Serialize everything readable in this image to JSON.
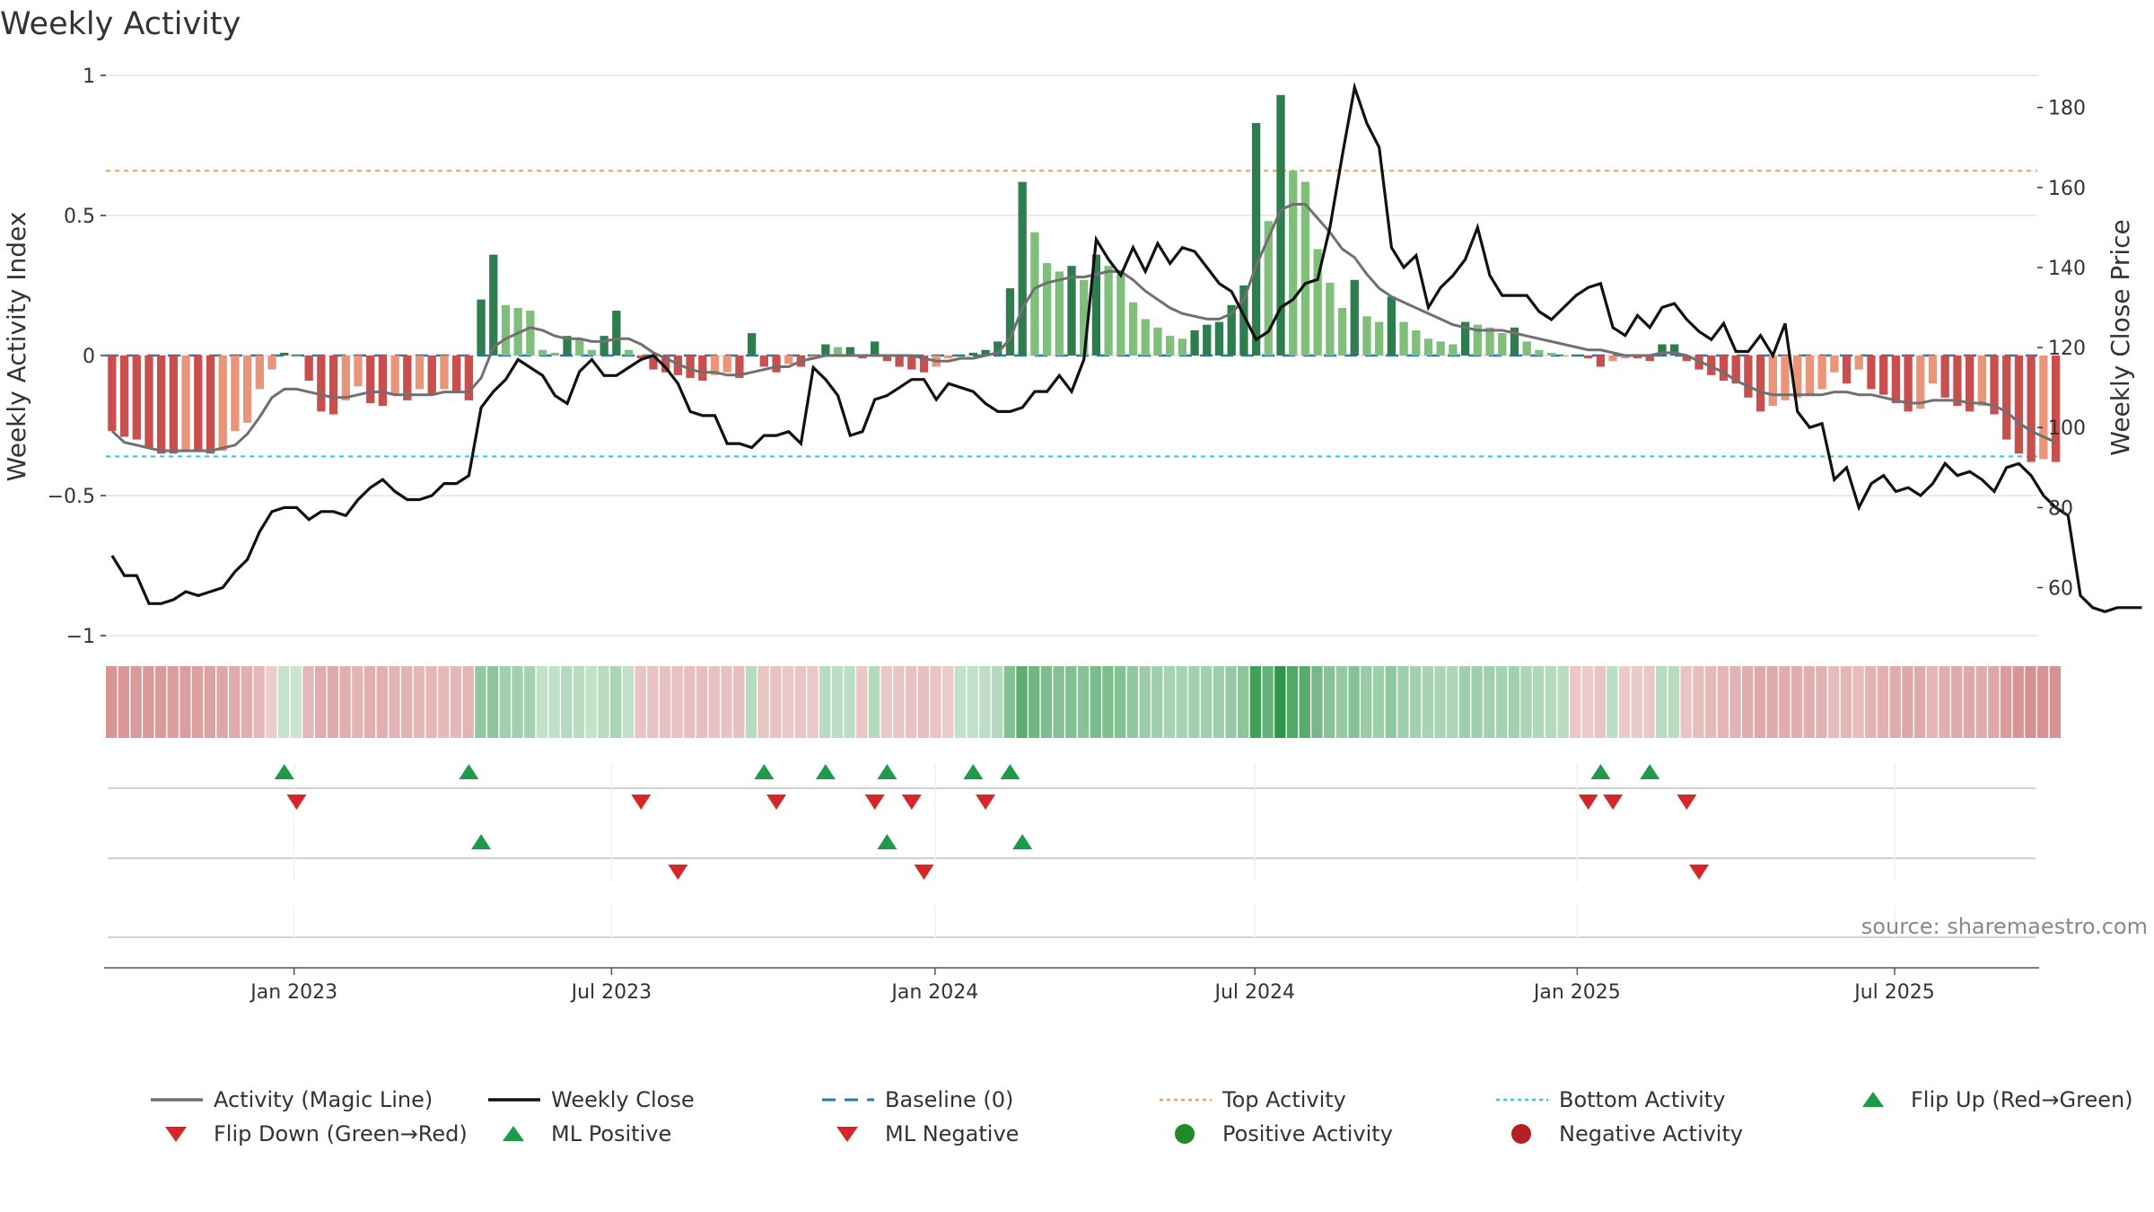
{
  "chart_data": {
    "type": "bar",
    "title": "Weekly Activity",
    "ylabel": "Weekly Activity Index",
    "ylabel_right": "Weekly Close Price",
    "ylim": [
      -1,
      1
    ],
    "ylim_right": [
      48,
      188
    ],
    "yticks": [
      {
        "value": 1,
        "label": "1"
      },
      {
        "value": 0.5,
        "label": "0.5"
      },
      {
        "value": 0,
        "label": "0"
      },
      {
        "value": -0.5,
        "label": "−0.5"
      },
      {
        "value": -1,
        "label": "−1"
      }
    ],
    "yticks_right": [
      {
        "value": 180,
        "label": "180"
      },
      {
        "value": 160,
        "label": "160"
      },
      {
        "value": 140,
        "label": "140"
      },
      {
        "value": 120,
        "label": "120"
      },
      {
        "value": 100,
        "label": "100"
      },
      {
        "value": 80,
        "label": "80"
      },
      {
        "value": 60,
        "label": "60"
      }
    ],
    "x_start_week": 0,
    "x_end_week": 157,
    "xticks": [
      {
        "week": 15.3,
        "label": "Jan 2023"
      },
      {
        "week": 41.1,
        "label": "Jul 2023"
      },
      {
        "week": 67.4,
        "label": "Jan 2024"
      },
      {
        "week": 93.4,
        "label": "Jul 2024"
      },
      {
        "week": 119.6,
        "label": "Jan 2025"
      },
      {
        "week": 145.4,
        "label": "Jul 2025"
      }
    ],
    "top_activity": 0.66,
    "bottom_activity": -0.36,
    "activity": [
      -0.27,
      -0.29,
      -0.3,
      -0.33,
      -0.35,
      -0.35,
      -0.34,
      -0.34,
      -0.35,
      -0.34,
      -0.27,
      -0.24,
      -0.12,
      -0.05,
      0.01,
      0,
      -0.09,
      -0.2,
      -0.21,
      -0.16,
      -0.11,
      -0.17,
      -0.18,
      -0.14,
      -0.16,
      -0.12,
      -0.14,
      -0.12,
      -0.13,
      -0.16,
      0.2,
      0.36,
      0.18,
      0.17,
      0.16,
      0.02,
      0.01,
      0.07,
      0.06,
      0.02,
      0.07,
      0.16,
      0.02,
      -0.01,
      -0.05,
      -0.06,
      -0.07,
      -0.08,
      -0.09,
      -0.07,
      -0.06,
      -0.08,
      0.08,
      -0.04,
      -0.06,
      -0.03,
      -0.04,
      -0.01,
      0.04,
      0.03,
      0.03,
      -0.01,
      0.05,
      -0.02,
      -0.04,
      -0.05,
      -0.06,
      -0.04,
      -0.01,
      0,
      0.01,
      0.02,
      0.05,
      0.24,
      0.62,
      0.44,
      0.33,
      0.3,
      0.32,
      0.27,
      0.36,
      0.32,
      0.29,
      0.19,
      0.13,
      0.1,
      0.07,
      0.06,
      0.09,
      0.11,
      0.12,
      0.18,
      0.25,
      0.83,
      0.48,
      0.93,
      0.66,
      0.62,
      0.38,
      0.26,
      0.17,
      0.27,
      0.14,
      0.12,
      0.21,
      0.12,
      0.09,
      0.06,
      0.05,
      0.04,
      0.12,
      0.11,
      0.1,
      0.08,
      0.1,
      0.05,
      0.02,
      0.01,
      0,
      0,
      -0.01,
      -0.04,
      -0.02,
      -0.01,
      -0.01,
      -0.02,
      0.04,
      0.04,
      -0.02,
      -0.05,
      -0.07,
      -0.09,
      -0.1,
      -0.15,
      -0.2,
      -0.18,
      -0.16,
      -0.15,
      -0.14,
      -0.12,
      -0.06,
      -0.1,
      -0.05,
      -0.12,
      -0.14,
      -0.17,
      -0.2,
      -0.19,
      -0.1,
      -0.15,
      -0.18,
      -0.2,
      -0.18,
      -0.21,
      -0.3,
      -0.35,
      -0.38,
      -0.37,
      -0.38
    ],
    "magic_line": [
      -0.27,
      -0.31,
      -0.32,
      -0.33,
      -0.34,
      -0.34,
      -0.34,
      -0.34,
      -0.34,
      -0.33,
      -0.32,
      -0.28,
      -0.22,
      -0.15,
      -0.12,
      -0.12,
      -0.13,
      -0.14,
      -0.15,
      -0.15,
      -0.14,
      -0.13,
      -0.13,
      -0.14,
      -0.14,
      -0.14,
      -0.14,
      -0.13,
      -0.13,
      -0.13,
      -0.08,
      0.03,
      0.06,
      0.08,
      0.1,
      0.09,
      0.07,
      0.06,
      0.06,
      0.05,
      0.05,
      0.06,
      0.06,
      0.04,
      0.01,
      -0.01,
      -0.03,
      -0.05,
      -0.06,
      -0.06,
      -0.07,
      -0.07,
      -0.06,
      -0.05,
      -0.04,
      -0.04,
      -0.02,
      -0.01,
      0,
      0,
      0,
      0,
      0,
      0,
      0,
      0,
      -0.01,
      -0.02,
      -0.02,
      -0.01,
      -0.01,
      0,
      0.01,
      0.06,
      0.17,
      0.24,
      0.26,
      0.27,
      0.28,
      0.28,
      0.29,
      0.3,
      0.3,
      0.27,
      0.23,
      0.2,
      0.17,
      0.15,
      0.14,
      0.13,
      0.13,
      0.15,
      0.2,
      0.32,
      0.42,
      0.52,
      0.54,
      0.54,
      0.49,
      0.44,
      0.38,
      0.35,
      0.29,
      0.24,
      0.21,
      0.19,
      0.17,
      0.15,
      0.13,
      0.11,
      0.1,
      0.09,
      0.09,
      0.09,
      0.08,
      0.07,
      0.06,
      0.05,
      0.04,
      0.03,
      0.02,
      0.02,
      0.01,
      0,
      0,
      0,
      0.01,
      0.01,
      0,
      -0.02,
      -0.04,
      -0.06,
      -0.09,
      -0.11,
      -0.13,
      -0.14,
      -0.14,
      -0.14,
      -0.14,
      -0.14,
      -0.13,
      -0.13,
      -0.14,
      -0.14,
      -0.15,
      -0.16,
      -0.17,
      -0.17,
      -0.16,
      -0.16,
      -0.16,
      -0.17,
      -0.17,
      -0.18,
      -0.2,
      -0.24,
      -0.27,
      -0.29,
      -0.31
    ],
    "weekly_close": [
      68,
      63,
      63,
      56,
      56,
      57,
      59,
      58,
      59,
      60,
      64,
      67,
      74,
      79,
      80,
      80,
      77,
      79,
      79,
      78,
      82,
      85,
      87,
      84,
      82,
      82,
      83,
      86,
      86,
      88,
      105,
      109,
      112,
      117,
      115,
      113,
      108,
      106,
      114,
      117,
      113,
      113,
      115,
      117,
      118,
      115,
      111,
      104,
      103,
      103,
      96,
      96,
      95,
      98,
      98,
      99,
      96,
      115,
      112,
      108,
      98,
      99,
      107,
      108,
      110,
      112,
      112,
      107,
      111,
      110,
      109,
      106,
      104,
      104,
      105,
      109,
      109,
      113,
      109,
      117,
      147,
      142,
      138,
      145,
      139,
      146,
      141,
      145,
      144,
      140,
      136,
      134,
      128,
      122,
      124,
      130,
      132,
      136,
      137,
      150,
      168,
      185,
      176,
      170,
      145,
      140,
      143,
      130,
      135,
      138,
      142,
      150,
      138,
      133,
      133,
      133,
      129,
      127,
      130,
      133,
      135,
      136,
      125,
      123,
      128,
      125,
      130,
      131,
      127,
      124,
      122,
      126,
      119,
      119,
      123,
      118,
      126,
      104,
      100,
      101,
      87,
      90,
      80,
      86,
      88,
      84,
      85,
      83,
      86,
      91,
      88,
      89,
      87,
      84,
      90,
      91,
      88,
      83,
      80,
      78,
      58,
      55,
      54,
      55,
      55,
      55
    ],
    "band_cells": [
      -0.35,
      -0.34,
      -0.33,
      -0.33,
      -0.32,
      -0.31,
      -0.31,
      -0.3,
      -0.29,
      -0.27,
      -0.25,
      -0.23,
      -0.18,
      -0.08,
      0.06,
      0.04,
      -0.18,
      -0.24,
      -0.25,
      -0.23,
      -0.2,
      -0.22,
      -0.22,
      -0.2,
      -0.2,
      -0.18,
      -0.19,
      -0.17,
      -0.18,
      -0.2,
      0.28,
      0.3,
      0.22,
      0.21,
      0.2,
      0.08,
      0.08,
      0.14,
      0.12,
      0.08,
      0.12,
      0.18,
      0.08,
      -0.12,
      -0.13,
      -0.14,
      -0.14,
      -0.15,
      -0.15,
      -0.14,
      -0.13,
      -0.14,
      0.12,
      -0.12,
      -0.13,
      -0.11,
      -0.12,
      -0.1,
      0.12,
      0.1,
      0.1,
      -0.1,
      0.14,
      -0.1,
      -0.12,
      -0.13,
      -0.14,
      -0.12,
      -0.09,
      0.08,
      0.08,
      0.1,
      0.14,
      0.34,
      0.5,
      0.42,
      0.36,
      0.34,
      0.35,
      0.32,
      0.38,
      0.36,
      0.34,
      0.28,
      0.24,
      0.22,
      0.2,
      0.19,
      0.21,
      0.22,
      0.23,
      0.27,
      0.31,
      0.62,
      0.46,
      0.7,
      0.55,
      0.52,
      0.4,
      0.33,
      0.27,
      0.33,
      0.25,
      0.23,
      0.29,
      0.23,
      0.21,
      0.19,
      0.18,
      0.17,
      0.23,
      0.22,
      0.21,
      0.2,
      0.21,
      0.18,
      0.16,
      0.14,
      0.12,
      -0.1,
      -0.09,
      -0.12,
      0.1,
      -0.09,
      -0.09,
      -0.1,
      0.12,
      0.12,
      -0.12,
      -0.15,
      -0.17,
      -0.19,
      -0.2,
      -0.23,
      -0.26,
      -0.25,
      -0.24,
      -0.23,
      -0.22,
      -0.21,
      -0.16,
      -0.19,
      -0.16,
      -0.21,
      -0.22,
      -0.24,
      -0.26,
      -0.25,
      -0.19,
      -0.23,
      -0.25,
      -0.26,
      -0.25,
      -0.27,
      -0.32,
      -0.35,
      -0.37,
      -0.36,
      -0.37
    ],
    "flip_up_weeks": [
      14,
      29,
      53,
      58,
      63,
      70,
      73,
      121,
      125
    ],
    "flip_down_weeks": [
      15,
      43,
      54,
      62,
      65,
      71,
      120,
      122,
      128
    ],
    "ml_positive_weeks": [
      30,
      63,
      74
    ],
    "ml_negative_weeks": [
      46,
      66,
      129
    ],
    "legend": [
      {
        "label": "Activity (Magic Line)",
        "marker": "line",
        "color": "#707070"
      },
      {
        "label": "Weekly Close",
        "marker": "line",
        "color": "#111111"
      },
      {
        "label": "Baseline (0)",
        "marker": "dash",
        "color": "#2a78b4"
      },
      {
        "label": "Top Activity",
        "marker": "dot-line",
        "color": "#f0a060"
      },
      {
        "label": "Bottom Activity",
        "marker": "dot-line",
        "color": "#30c8d8"
      },
      {
        "label": "Flip Up (Red→Green)",
        "marker": "triangle-up",
        "color": "#1f9a4a"
      },
      {
        "label": "Flip Down (Green→Red)",
        "marker": "triangle-down",
        "color": "#d62728"
      },
      {
        "label": "ML Positive",
        "marker": "triangle-up",
        "color": "#1f9a4a"
      },
      {
        "label": "ML Negative",
        "marker": "triangle-down",
        "color": "#d62728"
      },
      {
        "label": "Positive Activity",
        "marker": "circle",
        "color": "#1f8a2a"
      },
      {
        "label": "Negative Activity",
        "marker": "circle",
        "color": "#b22222"
      }
    ],
    "source": "source: sharemaestro.com",
    "colors": {
      "pos_strong": "#2e7d4f",
      "pos_light": "#7fbf7b",
      "neg_strong": "#c94f4f",
      "neg_light": "#e8957a",
      "magic_line": "#707070",
      "close_line": "#111111",
      "baseline": "#2a78b4",
      "top": "#f0a060",
      "bottom": "#30c8d8",
      "flip_up": "#1f9a4a",
      "flip_down": "#d62728"
    }
  }
}
